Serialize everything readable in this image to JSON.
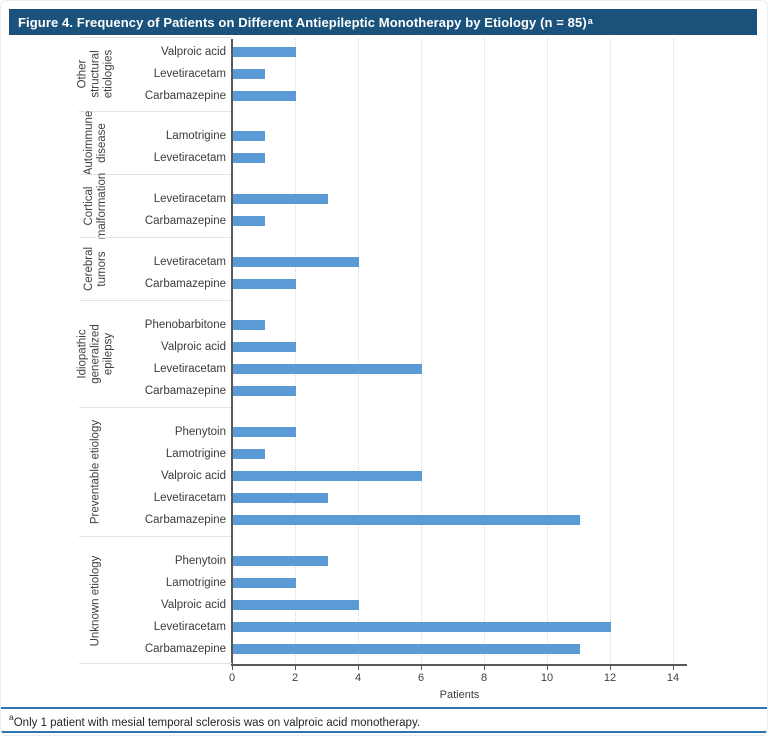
{
  "figure": {
    "title": "Figure 4. Frequency of Patients on Different Antiepileptic Monotherapy by Etiology (n = 85)",
    "title_superscript": "a",
    "footnote_superscript": "a",
    "footnote_text": "Only 1 patient with mesial temporal sclerosis was on valproic acid monotherapy."
  },
  "colors": {
    "title_background": "#1A527C",
    "title_text": "#FFFFFF",
    "bar": "#5B9BD5",
    "axis": "#595959",
    "gridline": "#D8D8D8",
    "group_separator": "#E3E3E3",
    "footnote_rule": "#2E74B5"
  },
  "chart_data": {
    "type": "bar",
    "orientation": "horizontal",
    "title": "Figure 4. Frequency of Patients on Different Antiepileptic Monotherapy by Etiology (n = 85)",
    "xlabel": "Patients",
    "ylabel": "",
    "xlim": [
      0,
      14.5
    ],
    "xticks": [
      0,
      2,
      4,
      6,
      8,
      10,
      12,
      14
    ],
    "grid": true,
    "legend": "none",
    "groups": [
      {
        "etiology": "Other structural etiologies",
        "label_lines": [
          "Other",
          "structural",
          "etiologies"
        ],
        "bars": [
          {
            "drug": "Valproic acid",
            "value": 2
          },
          {
            "drug": "Levetiracetam",
            "value": 1
          },
          {
            "drug": "Carbamazepine",
            "value": 2
          }
        ]
      },
      {
        "etiology": "Autoimmune disease",
        "label_lines": [
          "Autoimmune",
          "disease"
        ],
        "bars": [
          {
            "drug": "Lamotrigine",
            "value": 1
          },
          {
            "drug": "Levetiracetam",
            "value": 1
          }
        ]
      },
      {
        "etiology": "Cortical malformation",
        "label_lines": [
          "Cortical",
          "malformation"
        ],
        "bars": [
          {
            "drug": "Levetiracetam",
            "value": 3
          },
          {
            "drug": "Carbamazepine",
            "value": 1
          }
        ]
      },
      {
        "etiology": "Cerebral tumors",
        "label_lines": [
          "Cerebral",
          "tumors"
        ],
        "bars": [
          {
            "drug": "Levetiracetam",
            "value": 4
          },
          {
            "drug": "Carbamazepine",
            "value": 2
          }
        ]
      },
      {
        "etiology": "Idiopathic generalized epilepsy",
        "label_lines": [
          "Idiopathic",
          "generalized",
          "epilepsy"
        ],
        "bars": [
          {
            "drug": "Phenobarbitone",
            "value": 1
          },
          {
            "drug": "Valproic acid",
            "value": 2
          },
          {
            "drug": "Levetiracetam",
            "value": 6
          },
          {
            "drug": "Carbamazepine",
            "value": 2
          }
        ]
      },
      {
        "etiology": "Preventable etiology",
        "label_lines": [
          "Preventable etiology"
        ],
        "bars": [
          {
            "drug": "Phenytoin",
            "value": 2
          },
          {
            "drug": "Lamotrigine",
            "value": 1
          },
          {
            "drug": "Valproic acid",
            "value": 6
          },
          {
            "drug": "Levetiracetam",
            "value": 3
          },
          {
            "drug": "Carbamazepine",
            "value": 11
          }
        ]
      },
      {
        "etiology": "Unknown etiology",
        "label_lines": [
          "Unknown etiology"
        ],
        "bars": [
          {
            "drug": "Phenytoin",
            "value": 3
          },
          {
            "drug": "Lamotrigine",
            "value": 2
          },
          {
            "drug": "Valproic acid",
            "value": 4
          },
          {
            "drug": "Levetiracetam",
            "value": 12
          },
          {
            "drug": "Carbamazepine",
            "value": 11
          }
        ]
      }
    ]
  }
}
